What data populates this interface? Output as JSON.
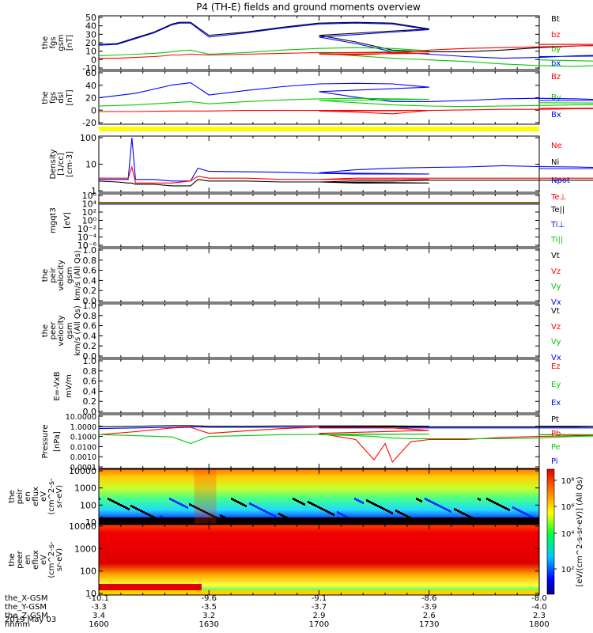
{
  "title": "P4 (TH-E) fields and ground moments overview",
  "chart_data": [
    {
      "type": "line",
      "panel": "fgs-gsm",
      "ylabel": [
        "the",
        "fgs",
        "gsm",
        "[nT]"
      ],
      "ylim": [
        -10,
        52
      ],
      "yticks": [
        "50",
        "40",
        "30",
        "20",
        "10",
        "0",
        "-10"
      ],
      "legend": [
        {
          "name": "Bt",
          "color": "#000000"
        },
        {
          "name": "bz",
          "color": "#ff0000"
        },
        {
          "name": "by",
          "color": "#00cc00"
        },
        {
          "name": "bx",
          "color": "#0000ff"
        }
      ],
      "x": [
        1600,
        1605,
        1610,
        1615,
        1618,
        1620,
        1622,
        1625,
        1630,
        1640,
        1650,
        1660,
        1670,
        1680,
        1690,
        1700,
        1710,
        1720,
        1730,
        1740,
        1750,
        1760,
        1770,
        1780,
        1790,
        1800
      ],
      "series": [
        {
          "name": "Bt",
          "color": "#000000",
          "values": [
            19,
            20,
            27,
            34,
            40,
            44,
            46,
            46,
            30,
            34,
            40,
            45,
            46,
            45,
            38,
            30,
            22,
            12,
            10,
            10,
            12,
            15,
            17,
            18,
            19,
            19
          ]
        },
        {
          "name": "bx",
          "color": "#0000ff",
          "values": [
            18,
            19,
            26,
            33,
            39,
            43,
            45,
            45,
            28,
            33,
            39,
            44,
            45,
            44,
            37,
            28,
            20,
            10,
            7,
            4,
            2,
            3,
            5,
            6,
            5,
            4
          ]
        },
        {
          "name": "by",
          "color": "#00cc00",
          "values": [
            5,
            6,
            7,
            8,
            9,
            10,
            11,
            12,
            7,
            9,
            12,
            14,
            15,
            14,
            11,
            8,
            5,
            2,
            0,
            -2,
            -5,
            -7,
            -8,
            -6,
            -3,
            0
          ]
        },
        {
          "name": "bz",
          "color": "#ff0000",
          "values": [
            2,
            2,
            3,
            4,
            5,
            6,
            6,
            7,
            6,
            7,
            8,
            9,
            9,
            9,
            8,
            7,
            6,
            8,
            12,
            14,
            15,
            16,
            17,
            18,
            19,
            19
          ]
        }
      ]
    },
    {
      "type": "line",
      "panel": "fgs-dsl",
      "ylabel": [
        "the",
        "fgs",
        "dsl",
        "[nT]"
      ],
      "ylim": [
        -28,
        62
      ],
      "yticks": [
        "60",
        "40",
        "20",
        "0",
        "-20"
      ],
      "legend": [
        {
          "name": "Bz",
          "color": "#ff0000"
        },
        {
          "name": "By",
          "color": "#00cc00"
        },
        {
          "name": "Bx",
          "color": "#0000ff"
        }
      ],
      "x": [
        1600,
        1610,
        1620,
        1625,
        1630,
        1640,
        1650,
        1660,
        1670,
        1680,
        1690,
        1700,
        1710,
        1720,
        1730,
        1740,
        1750,
        1760,
        1770,
        1780,
        1790,
        1800
      ],
      "series": [
        {
          "name": "Bx",
          "color": "#0000ff",
          "values": [
            17,
            25,
            40,
            44,
            22,
            30,
            37,
            42,
            43,
            42,
            36,
            28,
            18,
            10,
            10,
            12,
            15,
            16,
            15,
            13,
            12,
            12
          ]
        },
        {
          "name": "By",
          "color": "#00cc00",
          "values": [
            2,
            4,
            8,
            10,
            6,
            10,
            13,
            15,
            16,
            15,
            14,
            12,
            8,
            4,
            2,
            1,
            2,
            3,
            4,
            5,
            7,
            8
          ]
        },
        {
          "name": "Bz",
          "color": "#ff0000",
          "values": [
            -8,
            -8,
            -7,
            -7,
            -7,
            -6,
            -6,
            -6,
            -6,
            -6,
            -6,
            -7,
            -9,
            -12,
            -6,
            -5,
            -4,
            -4,
            -3,
            -3,
            -2,
            -2
          ]
        }
      ]
    },
    {
      "type": "line",
      "panel": "density",
      "ylabel": [
        "Density",
        "[1/cc]",
        "[cm-3]"
      ],
      "yscale": "log",
      "ylim": [
        0.1,
        200
      ],
      "yticks": [
        "100",
        "10",
        "1"
      ],
      "legend": [
        {
          "name": "Ne",
          "color": "#ff0000"
        },
        {
          "name": "Ni",
          "color": "#000000"
        },
        {
          "name": "Npot",
          "color": "#0000ff"
        },
        {
          "name": "Te⊥",
          "color": "#ff0000"
        }
      ],
      "x": [
        1600,
        1605,
        1608,
        1609,
        1610,
        1615,
        1620,
        1625,
        1627,
        1630,
        1640,
        1650,
        1660,
        1670,
        1680,
        1690,
        1700,
        1710,
        1720,
        1730,
        1740,
        1750,
        1760,
        1770,
        1780,
        1790,
        1800
      ],
      "series": [
        {
          "name": "Npot",
          "color": "#0000ff",
          "values": [
            0.5,
            0.5,
            0.5,
            200,
            0.5,
            0.5,
            0.4,
            0.4,
            2.5,
            1.6,
            1.5,
            1.4,
            1.2,
            1.1,
            1.1,
            1.1,
            1.3,
            2.0,
            2.5,
            2.8,
            3.0,
            3.6,
            3.2,
            3.0,
            2.6,
            2.4,
            2.4
          ]
        },
        {
          "name": "Ne",
          "color": "#ff0000",
          "values": [
            0.6,
            0.6,
            0.6,
            3.0,
            0.3,
            0.3,
            0.3,
            0.4,
            0.8,
            0.6,
            0.6,
            0.5,
            0.5,
            0.5,
            0.5,
            0.5,
            0.5,
            0.6,
            0.6,
            0.6,
            0.6,
            0.6,
            0.6,
            0.6,
            0.6,
            0.6,
            0.6
          ]
        },
        {
          "name": "Ni",
          "color": "#000000",
          "values": [
            0.4,
            0.35,
            0.3,
            0.3,
            0.25,
            0.25,
            0.2,
            0.2,
            0.5,
            0.4,
            0.4,
            0.35,
            0.35,
            0.3,
            0.3,
            0.3,
            0.35,
            0.4,
            0.4,
            0.45,
            0.45,
            0.45,
            0.45,
            0.45,
            0.45,
            0.45,
            0.45
          ]
        }
      ]
    },
    {
      "type": "line",
      "panel": "temperature",
      "ylabel": [
        "mgqt3",
        "[eV]"
      ],
      "yscale": "log",
      "yticks": [
        "10⁶",
        "10⁴",
        "10²",
        "10⁰",
        "10⁻²",
        "10⁻⁴",
        "10⁻⁶"
      ],
      "legend": [
        {
          "name": "Te||",
          "color": "#000000"
        },
        {
          "name": "Ti⊥",
          "color": "#0000ff"
        },
        {
          "name": "Ti||",
          "color": "#00cc00"
        }
      ]
    },
    {
      "type": "line",
      "panel": "peir-velocity",
      "ylabel": [
        "the",
        "peir",
        "velocity",
        "gsm",
        "km/s (All Qs)"
      ],
      "ylim": [
        0,
        1
      ],
      "yticks": [
        "1.0",
        "0.8",
        "0.6",
        "0.4",
        "0.2",
        "0.0"
      ],
      "legend": [
        {
          "name": "Vt",
          "color": "#000000"
        },
        {
          "name": "Vz",
          "color": "#ff0000"
        },
        {
          "name": "Vy",
          "color": "#00cc00"
        },
        {
          "name": "Vx",
          "color": "#0000ff"
        }
      ]
    },
    {
      "type": "line",
      "panel": "peer-velocity",
      "ylabel": [
        "the",
        "peer",
        "velocity",
        "gsm",
        "km/s (All Qs)"
      ],
      "ylim": [
        0,
        1
      ],
      "yticks": [
        "1.0",
        "0.8",
        "0.6",
        "0.4",
        "0.2",
        "0.0"
      ],
      "legend": [
        {
          "name": "Vt",
          "color": "#000000"
        },
        {
          "name": "Vz",
          "color": "#ff0000"
        },
        {
          "name": "Vy",
          "color": "#00cc00"
        },
        {
          "name": "Vx",
          "color": "#0000ff"
        }
      ]
    },
    {
      "type": "line",
      "panel": "efield",
      "ylabel": [
        "E=-VxB",
        "mV/m"
      ],
      "ylim": [
        0,
        1
      ],
      "yticks": [
        "1.0",
        "0.8",
        "0.6",
        "0.4",
        "0.2",
        "0.0"
      ],
      "legend": [
        {
          "name": "Ez",
          "color": "#ff0000"
        },
        {
          "name": "Ey",
          "color": "#00cc00"
        },
        {
          "name": "Ex",
          "color": "#0000ff"
        }
      ]
    },
    {
      "type": "line",
      "panel": "pressure",
      "ylabel": [
        "Pressure",
        "[nPa]"
      ],
      "yscale": "log",
      "ylim": [
        0.0001,
        10
      ],
      "yticks": [
        "10.0000",
        "1.0000",
        "0.1000",
        "0.0100",
        "0.0010",
        "0.0001"
      ],
      "legend": [
        {
          "name": "Pt",
          "color": "#000000"
        },
        {
          "name": "Pb",
          "color": "#ff0000"
        },
        {
          "name": "Pe",
          "color": "#00cc00"
        },
        {
          "name": "Pi",
          "color": "#0000ff"
        }
      ],
      "x": [
        1600,
        1610,
        1620,
        1625,
        1630,
        1640,
        1650,
        1660,
        1670,
        1680,
        1690,
        1700,
        1710,
        1715,
        1718,
        1720,
        1725,
        1730,
        1740,
        1750,
        1760,
        1770,
        1780,
        1790,
        1800
      ],
      "series": [
        {
          "name": "Pt",
          "color": "#000000",
          "values": [
            0.9,
            1.0,
            1.2,
            1.2,
            1.0,
            1.0,
            1.1,
            1.1,
            1.1,
            1.1,
            1.0,
            0.9,
            0.9,
            0.9,
            0.9,
            0.9,
            0.9,
            0.9,
            0.9,
            0.9,
            0.9,
            0.9,
            1.0,
            1.0,
            1.0
          ]
        },
        {
          "name": "Pi",
          "color": "#0000ff",
          "values": [
            0.6,
            0.7,
            0.8,
            0.9,
            0.8,
            0.8,
            0.8,
            0.8,
            0.8,
            0.7,
            0.7,
            0.7,
            0.7,
            0.7,
            0.7,
            0.7,
            0.7,
            0.7,
            0.7,
            0.7,
            0.7,
            0.7,
            0.7,
            0.7,
            0.7
          ]
        },
        {
          "name": "Pb",
          "color": "#ff0000",
          "values": [
            0.15,
            0.3,
            0.7,
            0.8,
            0.2,
            0.35,
            0.6,
            0.8,
            0.8,
            0.7,
            0.4,
            0.2,
            0.05,
            0.0005,
            0.02,
            0.0003,
            0.03,
            0.05,
            0.05,
            0.08,
            0.1,
            0.12,
            0.13,
            0.14,
            0.15
          ]
        },
        {
          "name": "Pe",
          "color": "#00cc00",
          "values": [
            0.15,
            0.12,
            0.09,
            0.02,
            0.1,
            0.12,
            0.15,
            0.16,
            0.17,
            0.17,
            0.17,
            0.15,
            0.12,
            0.1,
            0.08,
            0.07,
            0.06,
            0.06,
            0.06,
            0.06,
            0.07,
            0.1,
            0.12,
            0.15,
            0.15
          ]
        }
      ]
    },
    {
      "type": "heatmap",
      "panel": "peir-en-eflux",
      "ylabel": [
        "the",
        "peir",
        "en",
        "eflux",
        "eV",
        "(cm^2-s-",
        "sr-eV)"
      ],
      "yscale": "log",
      "ylim": [
        7,
        30000
      ],
      "yticks": [
        "10000",
        "1000",
        "100",
        "10"
      ]
    },
    {
      "type": "heatmap",
      "panel": "peer-en-eflux",
      "ylabel": [
        "the",
        "peer",
        "en",
        "eflux",
        "eV",
        "(cm^2-s-",
        "sr-eV)"
      ],
      "yscale": "log",
      "ylim": [
        7,
        30000
      ],
      "yticks": [
        "10000",
        "1000",
        "100",
        "10"
      ],
      "colorbar": {
        "label": "[eV/(cm^2-s-sr-eV)] (All Qs)",
        "ticks": [
          "10⁸",
          "10⁶",
          "10⁴",
          "10²"
        ]
      }
    }
  ],
  "xaxis": {
    "range": [
      1600,
      1800
    ],
    "rows": [
      {
        "name": "the_X-GSM",
        "values": [
          "-10.1",
          "-9.6",
          "-9.1",
          "-8.6",
          "-8.0"
        ]
      },
      {
        "name": "the_Y-GSM",
        "values": [
          "-3.3",
          "-3.5",
          "-3.7",
          "-3.9",
          "-4.0"
        ]
      },
      {
        "name": "the_Z-GSM",
        "values": [
          "3.4",
          "3.2",
          "2.9",
          "2.6",
          "2.3"
        ]
      },
      {
        "name": "hhmm",
        "values": [
          "1600",
          "1630",
          "1700",
          "1730",
          "1800"
        ]
      }
    ],
    "date": "2019 May 03"
  }
}
